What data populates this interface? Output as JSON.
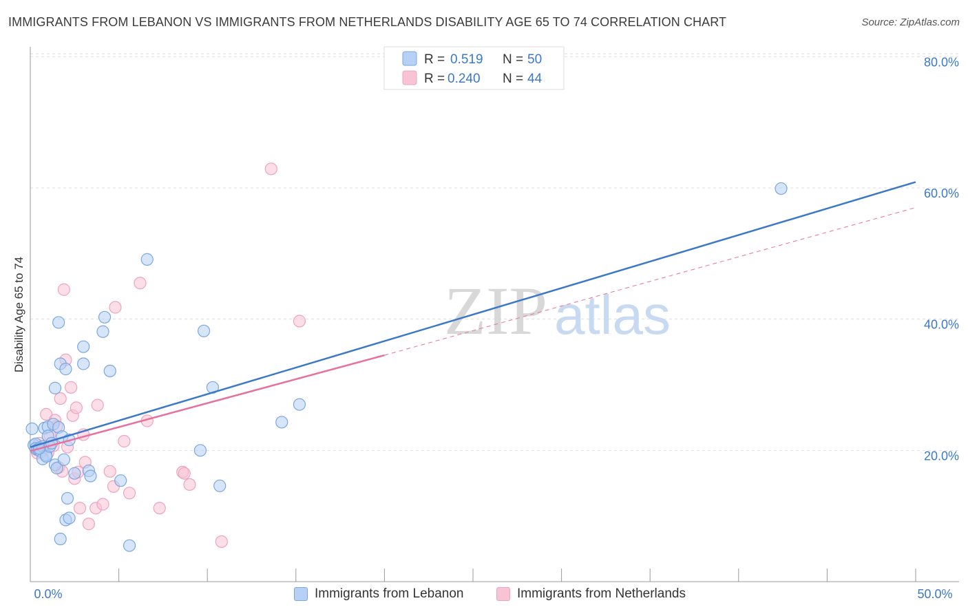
{
  "title": "IMMIGRANTS FROM LEBANON VS IMMIGRANTS FROM NETHERLANDS DISABILITY AGE 65 TO 74 CORRELATION CHART",
  "source": "Source: ZipAtlas.com",
  "watermark": {
    "zip": "ZIP",
    "atlas": "atlas"
  },
  "colors": {
    "blue": "#3b78c9",
    "blue_fill": "#b7d0f5",
    "blue_stroke": "#7aa7e0",
    "pink": "#e8709c",
    "pink_fill": "#f8c3d4",
    "pink_stroke": "#eea3bd",
    "grid": "#dddddd"
  },
  "legend": [
    {
      "r_label": "R =",
      "r_value": "0.519",
      "n_label": "N =",
      "n_value": "50"
    },
    {
      "r_label": "R =",
      "r_value": "0.240",
      "n_label": "N =",
      "n_value": "44"
    }
  ],
  "bottom_legend": [
    "Immigrants from Lebanon",
    "Immigrants from Netherlands"
  ],
  "chart_data": {
    "type": "scatter",
    "title": "IMMIGRANTS FROM LEBANON VS IMMIGRANTS FROM NETHERLANDS DISABILITY AGE 65 TO 74 CORRELATION CHART",
    "xlabel": "",
    "ylabel": "Disability Age 65 to 74",
    "xlim": [
      0,
      50
    ],
    "ylim": [
      0,
      81.5
    ],
    "x_tick_labels": [
      "0.0%",
      "50.0%"
    ],
    "y_ticks": [
      20,
      40,
      60,
      80
    ],
    "y_tick_labels": [
      "20.0%",
      "40.0%",
      "60.0%",
      "80.0%"
    ],
    "series": [
      {
        "name": "Immigrants from Lebanon",
        "color": "blue",
        "r": 0.519,
        "n": 50,
        "trend": {
          "x": [
            0,
            50
          ],
          "y": [
            20.5,
            60.9
          ],
          "style": "solid"
        },
        "points": [
          [
            0.1,
            23.3
          ],
          [
            0.2,
            20.8
          ],
          [
            0.3,
            21.0
          ],
          [
            0.3,
            20.3
          ],
          [
            0.4,
            20.1
          ],
          [
            0.5,
            20.0
          ],
          [
            0.6,
            19.8
          ],
          [
            0.7,
            20.6
          ],
          [
            0.7,
            18.7
          ],
          [
            0.8,
            23.4
          ],
          [
            0.9,
            19.3
          ],
          [
            0.9,
            19.1
          ],
          [
            1.0,
            23.6
          ],
          [
            1.0,
            22.2
          ],
          [
            1.1,
            20.6
          ],
          [
            1.2,
            21.1
          ],
          [
            1.3,
            24.0
          ],
          [
            1.4,
            29.5
          ],
          [
            1.4,
            17.8
          ],
          [
            1.5,
            17.3
          ],
          [
            1.6,
            23.5
          ],
          [
            1.6,
            39.5
          ],
          [
            1.7,
            33.2
          ],
          [
            1.7,
            6.5
          ],
          [
            1.8,
            22.1
          ],
          [
            1.9,
            18.6
          ],
          [
            2.0,
            32.4
          ],
          [
            2.0,
            9.4
          ],
          [
            2.1,
            12.7
          ],
          [
            2.2,
            21.6
          ],
          [
            2.2,
            9.7
          ],
          [
            2.5,
            16.5
          ],
          [
            3.0,
            35.8
          ],
          [
            3.0,
            33.2
          ],
          [
            3.3,
            16.9
          ],
          [
            3.4,
            16.1
          ],
          [
            4.1,
            38.1
          ],
          [
            4.2,
            40.3
          ],
          [
            4.5,
            32.1
          ],
          [
            5.1,
            15.4
          ],
          [
            5.6,
            5.5
          ],
          [
            6.6,
            49.1
          ],
          [
            9.6,
            20.0
          ],
          [
            9.8,
            38.2
          ],
          [
            10.3,
            29.6
          ],
          [
            10.7,
            14.6
          ],
          [
            14.2,
            24.3
          ],
          [
            15.2,
            27.0
          ],
          [
            42.4,
            59.9
          ],
          [
            0.5,
            20.3
          ]
        ]
      },
      {
        "name": "Immigrants from Netherlands",
        "color": "pink",
        "r": 0.24,
        "n": 44,
        "trend": {
          "x": [
            0,
            20
          ],
          "y": [
            19.9,
            34.5
          ],
          "style": "solid",
          "extension": {
            "x": [
              20,
              50
            ],
            "y": [
              34.5,
              57.0
            ],
            "style": "dashed"
          }
        },
        "points": [
          [
            0.3,
            20.2
          ],
          [
            0.4,
            19.6
          ],
          [
            0.5,
            21.1
          ],
          [
            0.7,
            19.9
          ],
          [
            0.8,
            20.6
          ],
          [
            0.9,
            25.5
          ],
          [
            1.0,
            19.6
          ],
          [
            1.1,
            22.3
          ],
          [
            1.2,
            21.1
          ],
          [
            1.3,
            20.7
          ],
          [
            1.4,
            24.6
          ],
          [
            1.5,
            23.7
          ],
          [
            1.6,
            17.4
          ],
          [
            1.7,
            27.9
          ],
          [
            1.8,
            16.8
          ],
          [
            1.9,
            44.5
          ],
          [
            2.0,
            33.8
          ],
          [
            2.1,
            20.5
          ],
          [
            2.3,
            29.6
          ],
          [
            2.4,
            25.3
          ],
          [
            2.5,
            15.7
          ],
          [
            2.6,
            26.5
          ],
          [
            2.7,
            16.7
          ],
          [
            2.8,
            11.2
          ],
          [
            3.0,
            22.4
          ],
          [
            3.1,
            18.2
          ],
          [
            3.3,
            8.8
          ],
          [
            3.7,
            11.2
          ],
          [
            3.8,
            26.9
          ],
          [
            4.1,
            11.8
          ],
          [
            4.5,
            16.8
          ],
          [
            4.7,
            14.5
          ],
          [
            4.8,
            41.8
          ],
          [
            5.3,
            21.4
          ],
          [
            5.6,
            13.5
          ],
          [
            6.2,
            45.5
          ],
          [
            6.6,
            24.5
          ],
          [
            7.3,
            11.2
          ],
          [
            8.6,
            16.7
          ],
          [
            8.7,
            16.5
          ],
          [
            9.0,
            14.8
          ],
          [
            10.8,
            6.1
          ],
          [
            13.6,
            62.9
          ],
          [
            15.2,
            39.7
          ]
        ]
      }
    ]
  }
}
